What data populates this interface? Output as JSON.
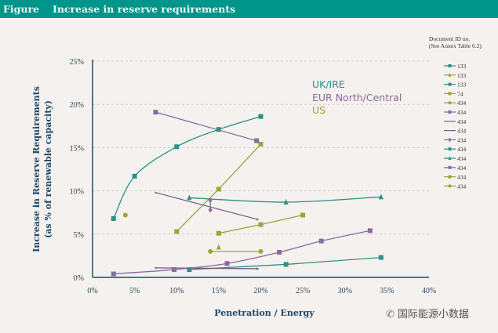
{
  "header": {
    "label": "Figure",
    "title": "Increase in reserve requirements"
  },
  "watermark": "国际能源小数据",
  "colors": {
    "teal": "#2a9187",
    "purple": "#8b6a9e",
    "olive": "#9ea43a",
    "header": "#00958a"
  },
  "chart_data": {
    "type": "line",
    "title": "Increase in reserve requirements",
    "xlabel": "Penetration / Energy",
    "ylabel": [
      "Increase in Reserve Requirements",
      "(as % of renewable capacity)"
    ],
    "xlim": [
      0,
      40
    ],
    "ylim": [
      0,
      25
    ],
    "x_ticks": [
      "0%",
      "5%",
      "10%",
      "15%",
      "20%",
      "25%",
      "30%",
      "35%",
      "40%"
    ],
    "y_ticks": [
      "0%",
      "5%",
      "10%",
      "15%",
      "20%",
      "25%"
    ],
    "grid": "horizontal dashed",
    "legend_title": [
      "Document ID no.",
      "(See Annex Table 6.2)"
    ],
    "legend_position": "right",
    "annotations": [
      {
        "text": "UK/IRE",
        "color": "#2a9187"
      },
      {
        "text": "EUR North/Central",
        "color": "#8b6a9e"
      },
      {
        "text": "US",
        "color": "#9ea43a"
      }
    ],
    "series": [
      {
        "name": "133",
        "color": "#2a9187",
        "marker": "square",
        "smooth": true,
        "points": [
          [
            2.5,
            6.8
          ],
          [
            5,
            11.7
          ],
          [
            10,
            15.1
          ],
          [
            15,
            17.1
          ],
          [
            20,
            18.6
          ]
        ]
      },
      {
        "name": "133",
        "color": "#9ea43a",
        "marker": "triangle",
        "points": [
          [
            15,
            3.5
          ]
        ]
      },
      {
        "name": "133",
        "color": "#2a9187",
        "marker": "square",
        "points": [
          [
            11.5,
            0.9
          ],
          [
            23,
            1.5
          ],
          [
            34.3,
            2.3
          ]
        ]
      },
      {
        "name": "74",
        "color": "#9ea43a",
        "marker": "square",
        "points": [
          [
            10,
            5.3
          ],
          [
            15,
            10.2
          ],
          [
            20,
            15.4
          ]
        ]
      },
      {
        "name": "434",
        "color": "#9ea43a",
        "marker": "circle",
        "points": [
          [
            3.9,
            7.2
          ]
        ]
      },
      {
        "name": "434",
        "color": "#8b6a9e",
        "marker": "square",
        "points": [
          [
            7.5,
            19.1
          ],
          [
            19.5,
            15.8
          ]
        ]
      },
      {
        "name": "434",
        "color": "#7a6888",
        "marker": "none",
        "points": [
          [
            7.5,
            9.8
          ],
          [
            19.6,
            6.7
          ]
        ]
      },
      {
        "name": "434",
        "color": "#6e5f80",
        "marker": "none",
        "points": [
          [
            7.5,
            1.1
          ],
          [
            19.6,
            1.0
          ]
        ]
      },
      {
        "name": "434",
        "color": "#8b6a9e",
        "marker": "diamond",
        "points": [
          [
            14,
            8.9
          ],
          [
            14,
            7.8
          ]
        ]
      },
      {
        "name": "434",
        "color": "#2a9187",
        "marker": "square",
        "points": []
      },
      {
        "name": "434",
        "color": "#2a9187",
        "marker": "triangle",
        "smooth": true,
        "points": [
          [
            11.5,
            9.2
          ],
          [
            23,
            8.7
          ],
          [
            34.3,
            9.3
          ]
        ]
      },
      {
        "name": "434",
        "color": "#8b6a9e",
        "marker": "square",
        "smooth": true,
        "points": [
          [
            2.5,
            0.4
          ],
          [
            9.7,
            0.9
          ],
          [
            16,
            1.6
          ],
          [
            22.2,
            2.9
          ],
          [
            27.2,
            4.2
          ],
          [
            33,
            5.4
          ]
        ]
      },
      {
        "name": "434",
        "color": "#9ea43a",
        "marker": "square",
        "points": [
          [
            15,
            5.1
          ],
          [
            20,
            6.1
          ],
          [
            25,
            7.2
          ]
        ]
      },
      {
        "name": "434",
        "color": "#9ea43a",
        "marker": "circle",
        "points": [
          [
            14,
            3.0
          ],
          [
            20,
            3.0
          ]
        ]
      }
    ]
  }
}
